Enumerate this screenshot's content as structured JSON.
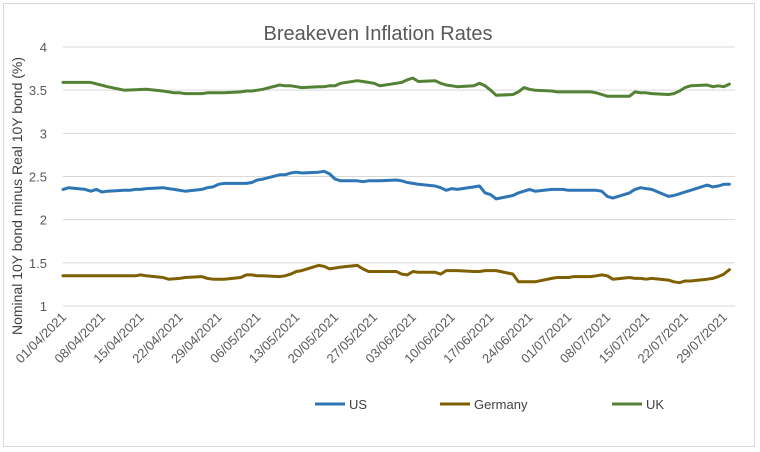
{
  "chart_data": {
    "type": "line",
    "title": "Breakeven Inflation Rates",
    "xlabel": "",
    "ylabel": "Nominal 10Y bond minus Real 10Y bond (%)",
    "ylim": [
      1,
      4
    ],
    "yticks": [
      "1",
      "1.5",
      "2",
      "2.5",
      "3",
      "3.5",
      "4"
    ],
    "ytick_values": [
      1,
      1.5,
      2,
      2.5,
      3,
      3.5,
      4
    ],
    "grid": "horizontal",
    "legend_position": "bottom",
    "x_start": "2021-04-01",
    "x_end": "2021-07-31",
    "xticks": [
      "01/04/2021",
      "08/04/2021",
      "15/04/2021",
      "22/04/2021",
      "29/04/2021",
      "06/05/2021",
      "13/05/2021",
      "20/05/2021",
      "27/05/2021",
      "03/06/2021",
      "10/06/2021",
      "17/06/2021",
      "24/06/2021",
      "01/07/2021",
      "08/07/2021",
      "15/07/2021",
      "22/07/2021",
      "29/07/2021"
    ],
    "xtick_dates": [
      "2021-04-01",
      "2021-04-08",
      "2021-04-15",
      "2021-04-22",
      "2021-04-29",
      "2021-05-06",
      "2021-05-13",
      "2021-05-20",
      "2021-05-27",
      "2021-06-03",
      "2021-06-10",
      "2021-06-17",
      "2021-06-24",
      "2021-07-01",
      "2021-07-08",
      "2021-07-15",
      "2021-07-22",
      "2021-07-29"
    ],
    "series": [
      {
        "name": "US",
        "color": "#2e75b6",
        "points": [
          [
            "2021-04-01",
            2.35
          ],
          [
            "2021-04-02",
            2.37
          ],
          [
            "2021-04-05",
            2.35
          ],
          [
            "2021-04-06",
            2.33
          ],
          [
            "2021-04-07",
            2.35
          ],
          [
            "2021-04-08",
            2.32
          ],
          [
            "2021-04-09",
            2.33
          ],
          [
            "2021-04-12",
            2.34
          ],
          [
            "2021-04-13",
            2.34
          ],
          [
            "2021-04-14",
            2.35
          ],
          [
            "2021-04-15",
            2.35
          ],
          [
            "2021-04-16",
            2.36
          ],
          [
            "2021-04-19",
            2.37
          ],
          [
            "2021-04-20",
            2.36
          ],
          [
            "2021-04-21",
            2.35
          ],
          [
            "2021-04-22",
            2.34
          ],
          [
            "2021-04-23",
            2.33
          ],
          [
            "2021-04-26",
            2.35
          ],
          [
            "2021-04-27",
            2.37
          ],
          [
            "2021-04-28",
            2.38
          ],
          [
            "2021-04-29",
            2.41
          ],
          [
            "2021-04-30",
            2.42
          ],
          [
            "2021-05-03",
            2.42
          ],
          [
            "2021-05-04",
            2.42
          ],
          [
            "2021-05-05",
            2.43
          ],
          [
            "2021-05-06",
            2.46
          ],
          [
            "2021-05-07",
            2.47
          ],
          [
            "2021-05-10",
            2.52
          ],
          [
            "2021-05-11",
            2.52
          ],
          [
            "2021-05-12",
            2.54
          ],
          [
            "2021-05-13",
            2.55
          ],
          [
            "2021-05-14",
            2.54
          ],
          [
            "2021-05-17",
            2.55
          ],
          [
            "2021-05-18",
            2.56
          ],
          [
            "2021-05-19",
            2.53
          ],
          [
            "2021-05-20",
            2.47
          ],
          [
            "2021-05-21",
            2.45
          ],
          [
            "2021-05-24",
            2.45
          ],
          [
            "2021-05-25",
            2.44
          ],
          [
            "2021-05-26",
            2.45
          ],
          [
            "2021-05-27",
            2.45
          ],
          [
            "2021-05-28",
            2.45
          ],
          [
            "2021-05-31",
            2.46
          ],
          [
            "2021-06-01",
            2.45
          ],
          [
            "2021-06-02",
            2.43
          ],
          [
            "2021-06-03",
            2.42
          ],
          [
            "2021-06-04",
            2.41
          ],
          [
            "2021-06-07",
            2.39
          ],
          [
            "2021-06-08",
            2.37
          ],
          [
            "2021-06-09",
            2.34
          ],
          [
            "2021-06-10",
            2.36
          ],
          [
            "2021-06-11",
            2.35
          ],
          [
            "2021-06-14",
            2.38
          ],
          [
            "2021-06-15",
            2.39
          ],
          [
            "2021-06-16",
            2.31
          ],
          [
            "2021-06-17",
            2.29
          ],
          [
            "2021-06-18",
            2.24
          ],
          [
            "2021-06-21",
            2.28
          ],
          [
            "2021-06-22",
            2.31
          ],
          [
            "2021-06-23",
            2.33
          ],
          [
            "2021-06-24",
            2.35
          ],
          [
            "2021-06-25",
            2.33
          ],
          [
            "2021-06-28",
            2.35
          ],
          [
            "2021-06-29",
            2.35
          ],
          [
            "2021-06-30",
            2.35
          ],
          [
            "2021-07-01",
            2.34
          ],
          [
            "2021-07-02",
            2.34
          ],
          [
            "2021-07-05",
            2.34
          ],
          [
            "2021-07-06",
            2.34
          ],
          [
            "2021-07-07",
            2.33
          ],
          [
            "2021-07-08",
            2.27
          ],
          [
            "2021-07-09",
            2.25
          ],
          [
            "2021-07-12",
            2.31
          ],
          [
            "2021-07-13",
            2.35
          ],
          [
            "2021-07-14",
            2.37
          ],
          [
            "2021-07-15",
            2.36
          ],
          [
            "2021-07-16",
            2.35
          ],
          [
            "2021-07-19",
            2.27
          ],
          [
            "2021-07-20",
            2.28
          ],
          [
            "2021-07-21",
            2.3
          ],
          [
            "2021-07-22",
            2.32
          ],
          [
            "2021-07-23",
            2.34
          ],
          [
            "2021-07-26",
            2.4
          ],
          [
            "2021-07-27",
            2.38
          ],
          [
            "2021-07-28",
            2.39
          ],
          [
            "2021-07-29",
            2.41
          ],
          [
            "2021-07-30",
            2.41
          ]
        ]
      },
      {
        "name": "Germany",
        "color": "#7f6000",
        "points": [
          [
            "2021-04-01",
            1.35
          ],
          [
            "2021-04-06",
            1.35
          ],
          [
            "2021-04-09",
            1.35
          ],
          [
            "2021-04-14",
            1.35
          ],
          [
            "2021-04-15",
            1.36
          ],
          [
            "2021-04-16",
            1.35
          ],
          [
            "2021-04-19",
            1.33
          ],
          [
            "2021-04-20",
            1.31
          ],
          [
            "2021-04-22",
            1.32
          ],
          [
            "2021-04-23",
            1.33
          ],
          [
            "2021-04-26",
            1.34
          ],
          [
            "2021-04-27",
            1.32
          ],
          [
            "2021-04-28",
            1.31
          ],
          [
            "2021-04-29",
            1.31
          ],
          [
            "2021-04-30",
            1.31
          ],
          [
            "2021-05-03",
            1.33
          ],
          [
            "2021-05-04",
            1.36
          ],
          [
            "2021-05-05",
            1.36
          ],
          [
            "2021-05-06",
            1.35
          ],
          [
            "2021-05-07",
            1.35
          ],
          [
            "2021-05-10",
            1.34
          ],
          [
            "2021-05-11",
            1.35
          ],
          [
            "2021-05-12",
            1.37
          ],
          [
            "2021-05-13",
            1.4
          ],
          [
            "2021-05-14",
            1.41
          ],
          [
            "2021-05-17",
            1.47
          ],
          [
            "2021-05-18",
            1.46
          ],
          [
            "2021-05-19",
            1.43
          ],
          [
            "2021-05-20",
            1.44
          ],
          [
            "2021-05-21",
            1.45
          ],
          [
            "2021-05-24",
            1.47
          ],
          [
            "2021-05-25",
            1.43
          ],
          [
            "2021-05-26",
            1.4
          ],
          [
            "2021-05-27",
            1.4
          ],
          [
            "2021-05-28",
            1.4
          ],
          [
            "2021-05-31",
            1.4
          ],
          [
            "2021-06-01",
            1.37
          ],
          [
            "2021-06-02",
            1.36
          ],
          [
            "2021-06-03",
            1.4
          ],
          [
            "2021-06-04",
            1.39
          ],
          [
            "2021-06-07",
            1.39
          ],
          [
            "2021-06-08",
            1.37
          ],
          [
            "2021-06-09",
            1.41
          ],
          [
            "2021-06-10",
            1.41
          ],
          [
            "2021-06-11",
            1.41
          ],
          [
            "2021-06-14",
            1.4
          ],
          [
            "2021-06-15",
            1.4
          ],
          [
            "2021-06-16",
            1.41
          ],
          [
            "2021-06-17",
            1.41
          ],
          [
            "2021-06-18",
            1.41
          ],
          [
            "2021-06-21",
            1.37
          ],
          [
            "2021-06-22",
            1.28
          ],
          [
            "2021-06-23",
            1.28
          ],
          [
            "2021-06-24",
            1.28
          ],
          [
            "2021-06-25",
            1.28
          ],
          [
            "2021-06-28",
            1.32
          ],
          [
            "2021-06-29",
            1.33
          ],
          [
            "2021-06-30",
            1.33
          ],
          [
            "2021-07-01",
            1.33
          ],
          [
            "2021-07-02",
            1.34
          ],
          [
            "2021-07-05",
            1.34
          ],
          [
            "2021-07-06",
            1.35
          ],
          [
            "2021-07-07",
            1.36
          ],
          [
            "2021-07-08",
            1.35
          ],
          [
            "2021-07-09",
            1.31
          ],
          [
            "2021-07-12",
            1.33
          ],
          [
            "2021-07-13",
            1.32
          ],
          [
            "2021-07-14",
            1.32
          ],
          [
            "2021-07-15",
            1.31
          ],
          [
            "2021-07-16",
            1.32
          ],
          [
            "2021-07-19",
            1.3
          ],
          [
            "2021-07-20",
            1.28
          ],
          [
            "2021-07-21",
            1.27
          ],
          [
            "2021-07-22",
            1.29
          ],
          [
            "2021-07-23",
            1.29
          ],
          [
            "2021-07-26",
            1.31
          ],
          [
            "2021-07-27",
            1.32
          ],
          [
            "2021-07-28",
            1.34
          ],
          [
            "2021-07-29",
            1.37
          ],
          [
            "2021-07-30",
            1.42
          ]
        ]
      },
      {
        "name": "UK",
        "color": "#548235",
        "points": [
          [
            "2021-04-01",
            3.59
          ],
          [
            "2021-04-06",
            3.59
          ],
          [
            "2021-04-09",
            3.54
          ],
          [
            "2021-04-12",
            3.5
          ],
          [
            "2021-04-16",
            3.51
          ],
          [
            "2021-04-19",
            3.49
          ],
          [
            "2021-04-20",
            3.48
          ],
          [
            "2021-04-21",
            3.47
          ],
          [
            "2021-04-22",
            3.47
          ],
          [
            "2021-04-23",
            3.46
          ],
          [
            "2021-04-26",
            3.46
          ],
          [
            "2021-04-27",
            3.47
          ],
          [
            "2021-04-28",
            3.47
          ],
          [
            "2021-04-29",
            3.47
          ],
          [
            "2021-04-30",
            3.47
          ],
          [
            "2021-05-03",
            3.48
          ],
          [
            "2021-05-04",
            3.49
          ],
          [
            "2021-05-05",
            3.49
          ],
          [
            "2021-05-06",
            3.5
          ],
          [
            "2021-05-07",
            3.51
          ],
          [
            "2021-05-10",
            3.56
          ],
          [
            "2021-05-11",
            3.55
          ],
          [
            "2021-05-12",
            3.55
          ],
          [
            "2021-05-13",
            3.54
          ],
          [
            "2021-05-14",
            3.53
          ],
          [
            "2021-05-17",
            3.54
          ],
          [
            "2021-05-18",
            3.54
          ],
          [
            "2021-05-19",
            3.55
          ],
          [
            "2021-05-20",
            3.55
          ],
          [
            "2021-05-21",
            3.58
          ],
          [
            "2021-05-24",
            3.61
          ],
          [
            "2021-05-25",
            3.6
          ],
          [
            "2021-05-26",
            3.59
          ],
          [
            "2021-05-27",
            3.58
          ],
          [
            "2021-05-28",
            3.55
          ],
          [
            "2021-05-31",
            3.58
          ],
          [
            "2021-06-01",
            3.59
          ],
          [
            "2021-06-02",
            3.62
          ],
          [
            "2021-06-03",
            3.64
          ],
          [
            "2021-06-04",
            3.6
          ],
          [
            "2021-06-07",
            3.61
          ],
          [
            "2021-06-08",
            3.58
          ],
          [
            "2021-06-09",
            3.56
          ],
          [
            "2021-06-10",
            3.55
          ],
          [
            "2021-06-11",
            3.54
          ],
          [
            "2021-06-14",
            3.55
          ],
          [
            "2021-06-15",
            3.58
          ],
          [
            "2021-06-16",
            3.55
          ],
          [
            "2021-06-17",
            3.5
          ],
          [
            "2021-06-18",
            3.44
          ],
          [
            "2021-06-21",
            3.45
          ],
          [
            "2021-06-22",
            3.48
          ],
          [
            "2021-06-23",
            3.53
          ],
          [
            "2021-06-24",
            3.51
          ],
          [
            "2021-06-25",
            3.5
          ],
          [
            "2021-06-28",
            3.49
          ],
          [
            "2021-06-29",
            3.48
          ],
          [
            "2021-06-30",
            3.48
          ],
          [
            "2021-07-01",
            3.48
          ],
          [
            "2021-07-02",
            3.48
          ],
          [
            "2021-07-05",
            3.48
          ],
          [
            "2021-07-06",
            3.47
          ],
          [
            "2021-07-07",
            3.45
          ],
          [
            "2021-07-08",
            3.43
          ],
          [
            "2021-07-09",
            3.43
          ],
          [
            "2021-07-12",
            3.43
          ],
          [
            "2021-07-13",
            3.48
          ],
          [
            "2021-07-14",
            3.47
          ],
          [
            "2021-07-15",
            3.47
          ],
          [
            "2021-07-16",
            3.46
          ],
          [
            "2021-07-19",
            3.45
          ],
          [
            "2021-07-20",
            3.46
          ],
          [
            "2021-07-21",
            3.49
          ],
          [
            "2021-07-22",
            3.53
          ],
          [
            "2021-07-23",
            3.55
          ],
          [
            "2021-07-26",
            3.56
          ],
          [
            "2021-07-27",
            3.54
          ],
          [
            "2021-07-28",
            3.55
          ],
          [
            "2021-07-29",
            3.54
          ],
          [
            "2021-07-30",
            3.57
          ]
        ]
      }
    ]
  }
}
